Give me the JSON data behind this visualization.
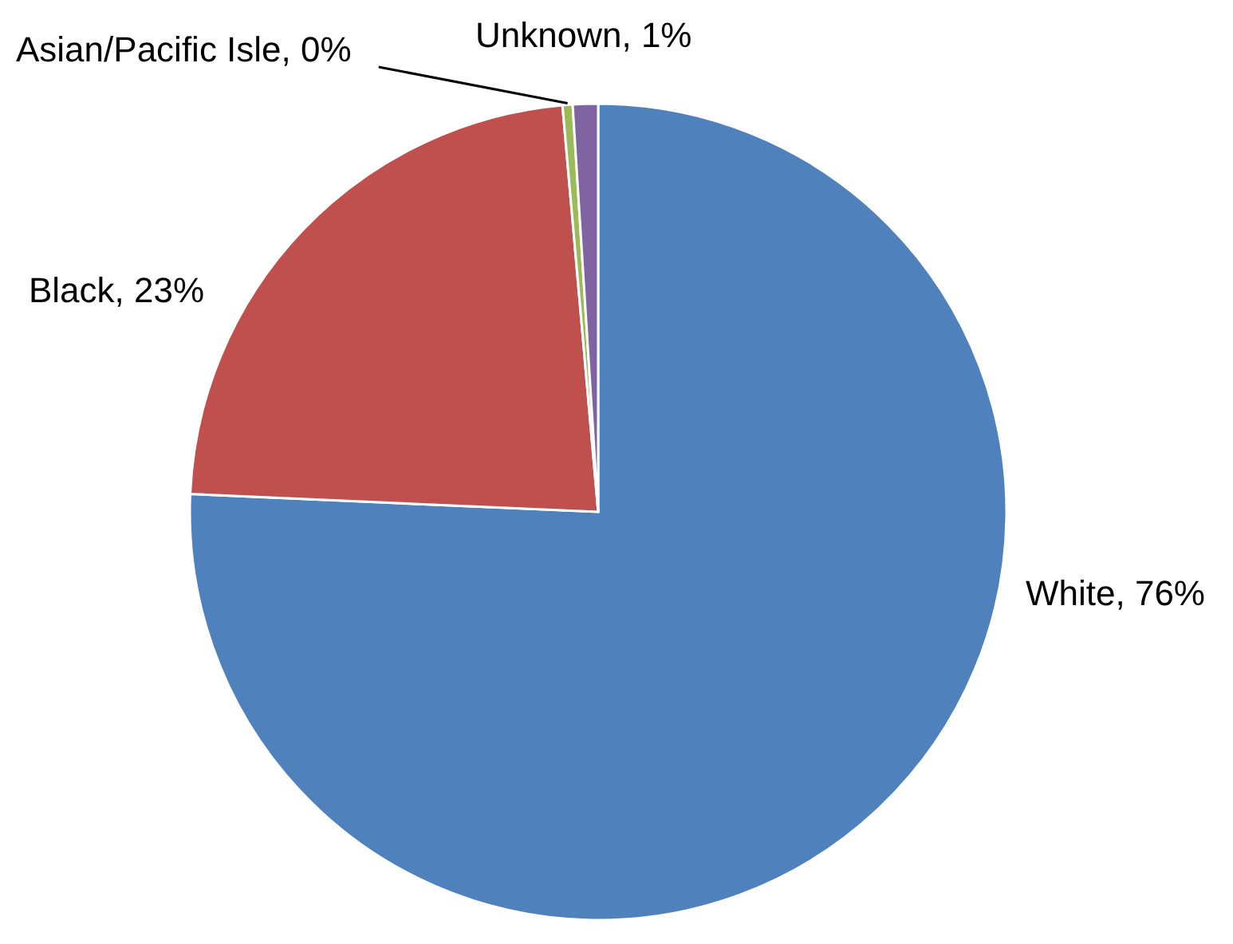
{
  "chart_data": {
    "type": "pie",
    "categories": [
      "White",
      "Black",
      "Asian/Pacific Isle",
      "Unknown"
    ],
    "values": [
      76,
      23,
      0.4,
      1
    ],
    "colors": [
      "#4f81bd",
      "#c0504d",
      "#9bbb59",
      "#8064a2"
    ],
    "value_labels": [
      "76%",
      "23%",
      "0%",
      "1%"
    ]
  }
}
